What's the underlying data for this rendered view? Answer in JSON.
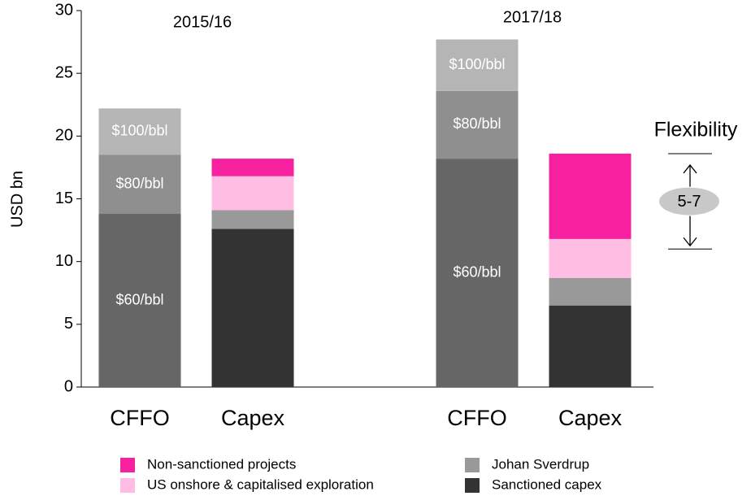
{
  "chart_data": {
    "type": "stacked_bar",
    "y_label": "USD bn",
    "groups": [
      "2015/16",
      "2017/18"
    ],
    "categories": [
      "CFFO",
      "Capex",
      "CFFO",
      "Capex"
    ],
    "ylim": [
      0,
      30
    ],
    "yticks": [
      0,
      5,
      10,
      15,
      20,
      25,
      30
    ],
    "price_series": [
      {
        "name": "$60/bbl",
        "color": "#666666",
        "values": [
          13.8,
          null,
          18.2,
          null
        ]
      },
      {
        "name": "$80/bbl",
        "color": "#8f8f8f",
        "values": [
          4.7,
          null,
          5.4,
          null
        ]
      },
      {
        "name": "$100/bbl",
        "color": "#b5b5b5",
        "values": [
          3.7,
          null,
          4.1,
          null
        ]
      }
    ],
    "series": [
      {
        "name": "Sanctioned capex",
        "color": "#333333",
        "values": [
          null,
          12.6,
          null,
          6.5
        ]
      },
      {
        "name": "Johan Sverdrup",
        "color": "#999999",
        "values": [
          null,
          1.5,
          null,
          2.2
        ]
      },
      {
        "name": "US onshore & capitalised exploration",
        "color": "#ffbde3",
        "values": [
          null,
          2.7,
          null,
          3.1
        ]
      },
      {
        "name": "Non-sanctioned projects",
        "color": "#f7209e",
        "values": [
          null,
          1.4,
          null,
          6.8
        ]
      }
    ],
    "annotation": {
      "label": "Flexibility",
      "value_label": "5-7",
      "range": [
        11,
        18.6
      ]
    }
  }
}
